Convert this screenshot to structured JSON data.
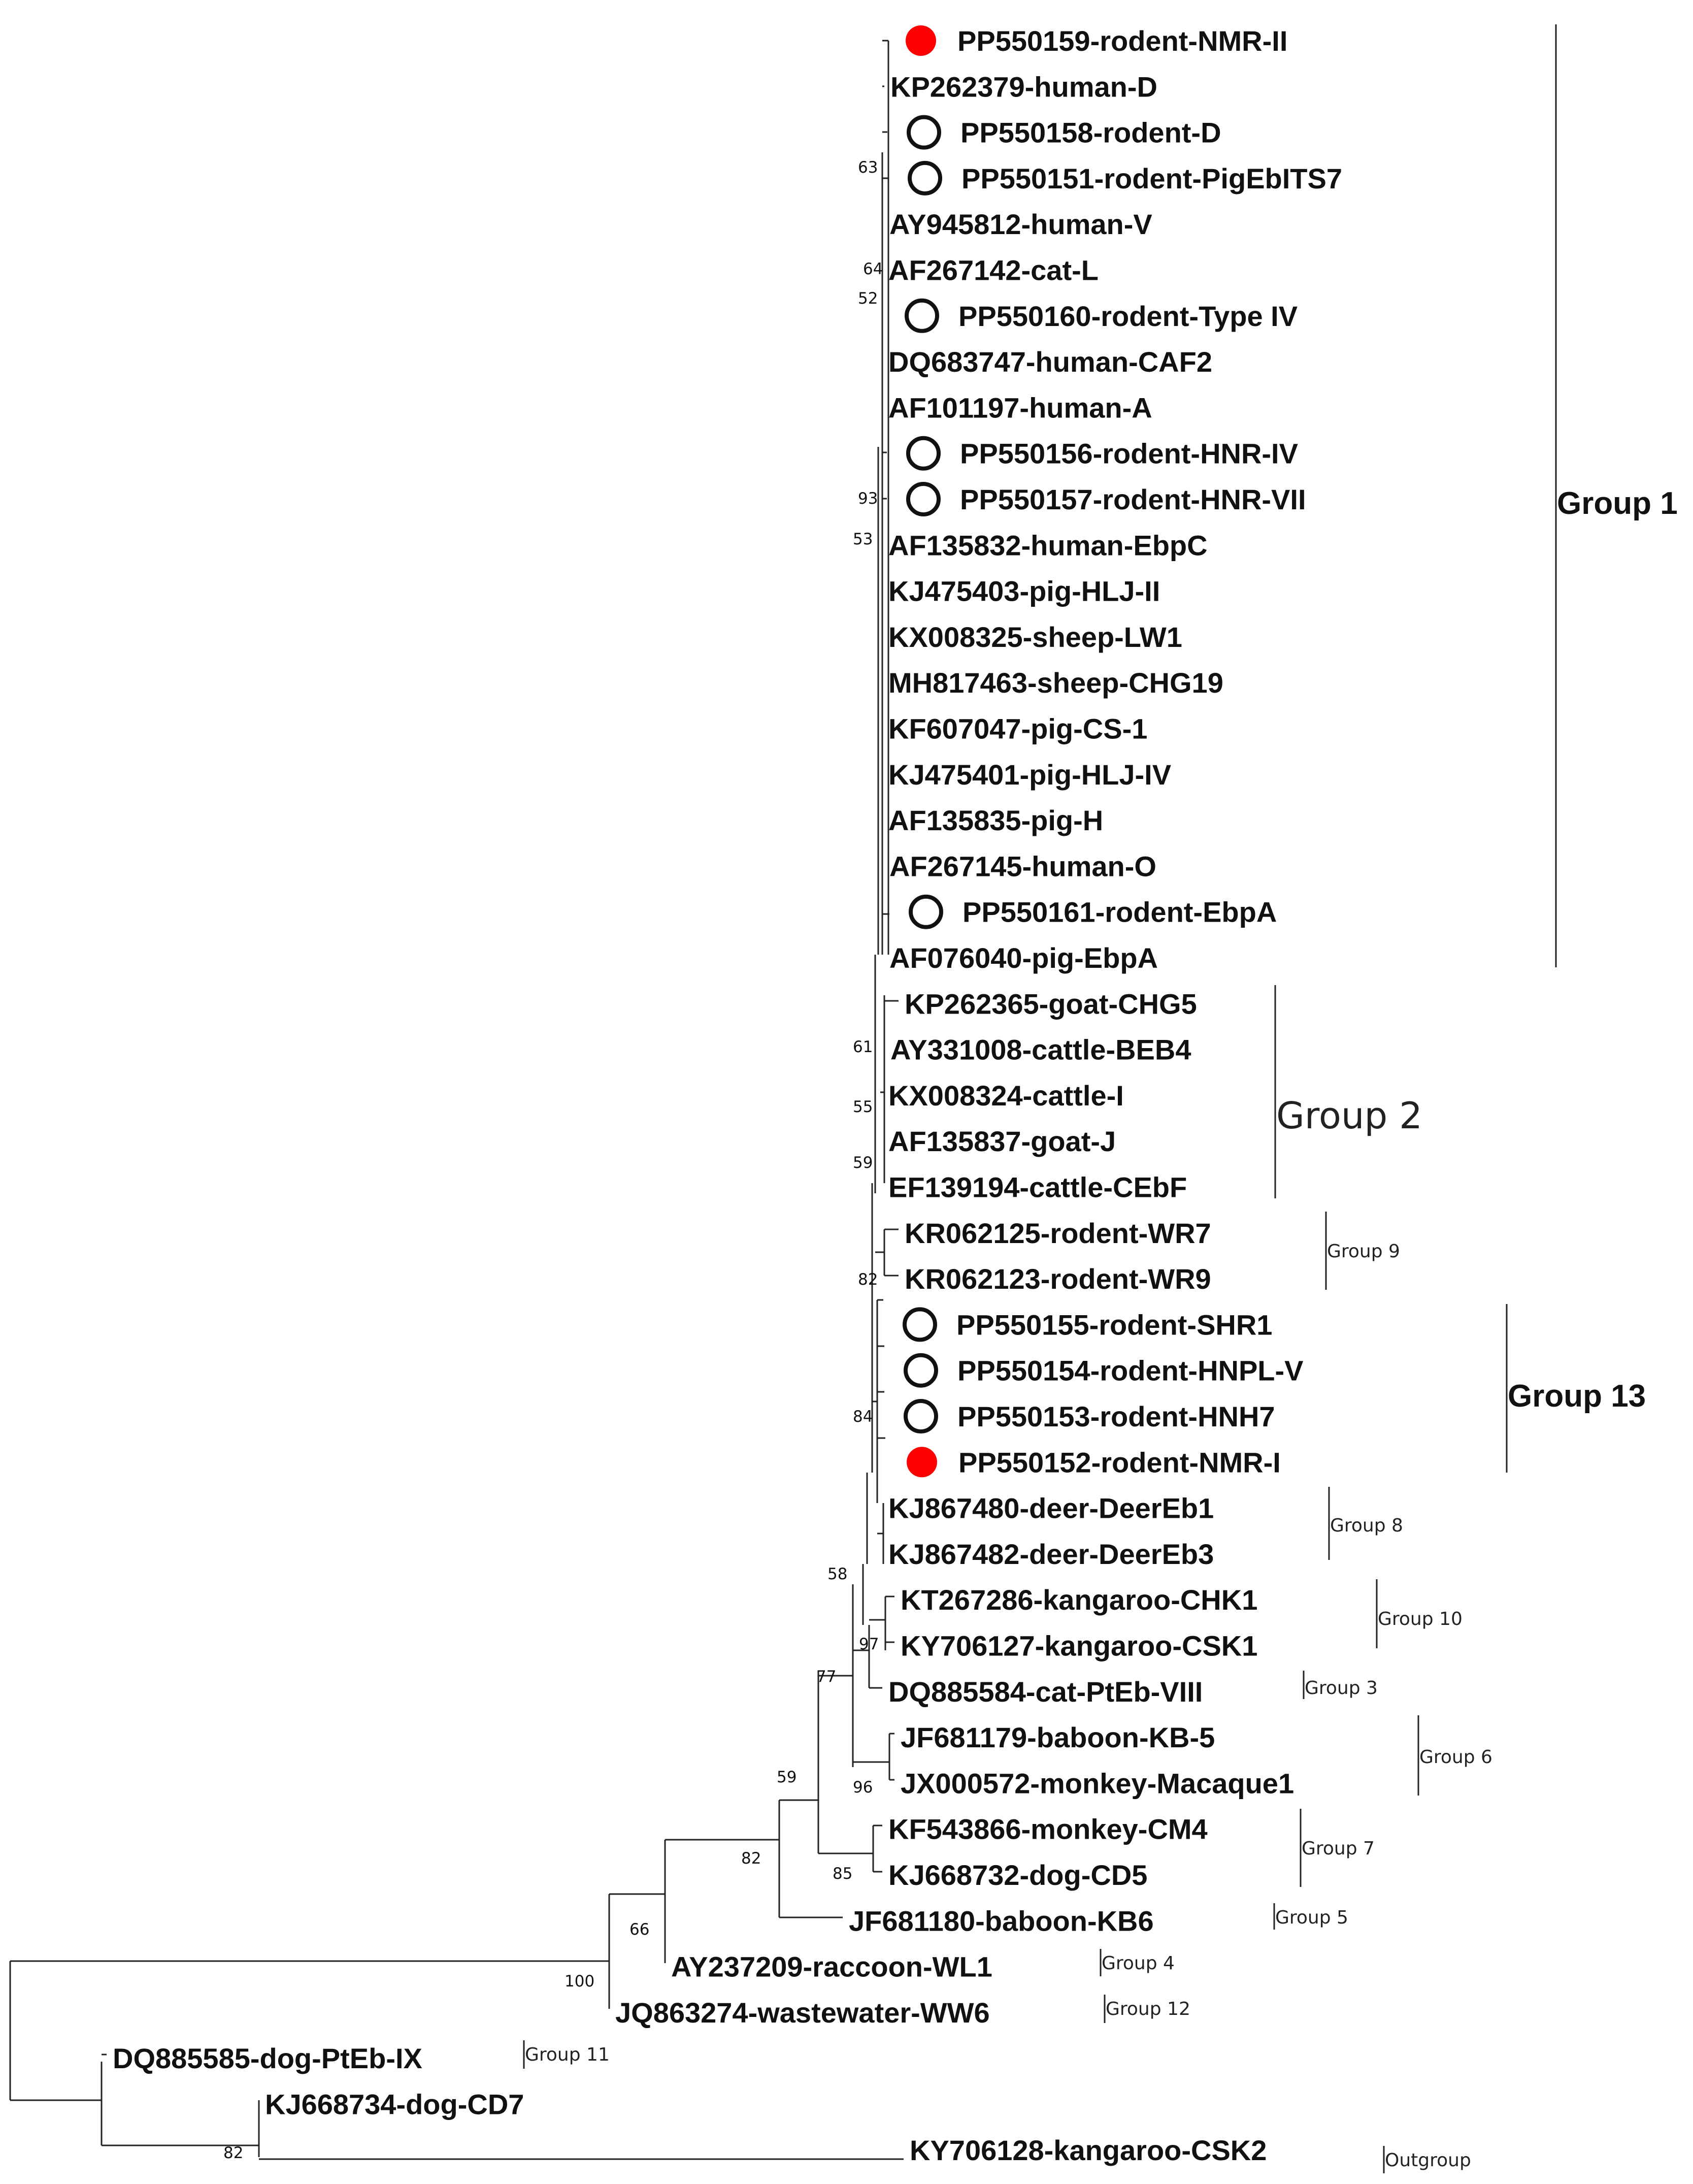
{
  "leaves": [
    {
      "id": "t01",
      "label": "PP550159-rodent-NMR-II",
      "marker": "filled",
      "color": "#ff0000"
    },
    {
      "id": "t02",
      "label": "KP262379-human-D",
      "marker": "none"
    },
    {
      "id": "t03",
      "label": "PP550158-rodent-D",
      "marker": "open"
    },
    {
      "id": "t04",
      "label": "PP550151-rodent-PigEbITS7",
      "marker": "open"
    },
    {
      "id": "t05",
      "label": "AY945812-human-V",
      "marker": "none"
    },
    {
      "id": "t06",
      "label": "AF267142-cat-L",
      "marker": "none"
    },
    {
      "id": "t07",
      "label": "PP550160-rodent-Type IV",
      "marker": "open"
    },
    {
      "id": "t08",
      "label": "DQ683747-human-CAF2",
      "marker": "none"
    },
    {
      "id": "t09",
      "label": "AF101197-human-A",
      "marker": "none"
    },
    {
      "id": "t10",
      "label": "PP550156-rodent-HNR-IV",
      "marker": "open"
    },
    {
      "id": "t11",
      "label": "PP550157-rodent-HNR-VII",
      "marker": "open"
    },
    {
      "id": "t12",
      "label": "AF135832-human-EbpC",
      "marker": "none"
    },
    {
      "id": "t13",
      "label": "KJ475403-pig-HLJ-II",
      "marker": "none"
    },
    {
      "id": "t14",
      "label": "KX008325-sheep-LW1",
      "marker": "none"
    },
    {
      "id": "t15",
      "label": "MH817463-sheep-CHG19",
      "marker": "none"
    },
    {
      "id": "t16",
      "label": "KF607047-pig-CS-1",
      "marker": "none"
    },
    {
      "id": "t17",
      "label": "KJ475401-pig-HLJ-IV",
      "marker": "none"
    },
    {
      "id": "t18",
      "label": "AF135835-pig-H",
      "marker": "none"
    },
    {
      "id": "t19",
      "label": "AF267145-human-O",
      "marker": "none"
    },
    {
      "id": "t20",
      "label": "PP550161-rodent-EbpA",
      "marker": "open"
    },
    {
      "id": "t21",
      "label": "AF076040-pig-EbpA",
      "marker": "none"
    },
    {
      "id": "t22",
      "label": "KP262365-goat-CHG5",
      "marker": "none"
    },
    {
      "id": "t23",
      "label": "AY331008-cattle-BEB4",
      "marker": "none"
    },
    {
      "id": "t24",
      "label": "KX008324-cattle-I",
      "marker": "none"
    },
    {
      "id": "t25",
      "label": "AF135837-goat-J",
      "marker": "none"
    },
    {
      "id": "t26",
      "label": "EF139194-cattle-CEbF",
      "marker": "none"
    },
    {
      "id": "t27",
      "label": "KR062125-rodent-WR7",
      "marker": "none"
    },
    {
      "id": "t28",
      "label": "KR062123-rodent-WR9",
      "marker": "none"
    },
    {
      "id": "t29",
      "label": "PP550155-rodent-SHR1",
      "marker": "open"
    },
    {
      "id": "t30",
      "label": "PP550154-rodent-HNPL-V",
      "marker": "open"
    },
    {
      "id": "t31",
      "label": "PP550153-rodent-HNH7",
      "marker": "open"
    },
    {
      "id": "t32",
      "label": "PP550152-rodent-NMR-I",
      "marker": "filled",
      "color": "#ff0000"
    },
    {
      "id": "t33",
      "label": "KJ867480-deer-DeerEb1",
      "marker": "none"
    },
    {
      "id": "t34",
      "label": "KJ867482-deer-DeerEb3",
      "marker": "none"
    },
    {
      "id": "t35",
      "label": "KT267286-kangaroo-CHK1",
      "marker": "none"
    },
    {
      "id": "t36",
      "label": "KY706127-kangaroo-CSK1",
      "marker": "none"
    },
    {
      "id": "t37",
      "label": "DQ885584-cat-PtEb-VIII",
      "marker": "none"
    },
    {
      "id": "t38",
      "label": "JF681179-baboon-KB-5",
      "marker": "none"
    },
    {
      "id": "t39",
      "label": "JX000572-monkey-Macaque1",
      "marker": "none"
    },
    {
      "id": "t40",
      "label": "KF543866-monkey-CM4",
      "marker": "none"
    },
    {
      "id": "t41",
      "label": "KJ668732-dog-CD5",
      "marker": "none"
    },
    {
      "id": "t42",
      "label": "JF681180-baboon-KB6",
      "marker": "none"
    },
    {
      "id": "t43",
      "label": "AY237209-raccoon-WL1",
      "marker": "none"
    },
    {
      "id": "t44",
      "label": "JQ863274-wastewater-WW6",
      "marker": "none"
    },
    {
      "id": "t45",
      "label": "DQ885585-dog-PtEb-IX",
      "marker": "none"
    },
    {
      "id": "t46",
      "label": "KJ668734-dog-CD7",
      "marker": "none"
    },
    {
      "id": "t47",
      "label": "KY706128-kangaroo-CSK2",
      "marker": "none"
    }
  ],
  "bootstrap": [
    "63",
    "64",
    "52",
    "93",
    "53",
    "61",
    "55",
    "59",
    "82",
    "84",
    "58",
    "97",
    "77",
    "59",
    "96",
    "82",
    "85",
    "66",
    "100",
    "82"
  ],
  "groups": [
    {
      "id": "g1",
      "label": "Group 1",
      "style": "big"
    },
    {
      "id": "g2",
      "label": "Group 2",
      "style": "g2"
    },
    {
      "id": "g9",
      "label": "Group 9",
      "style": "small"
    },
    {
      "id": "g13",
      "label": "Group 13",
      "style": "big"
    },
    {
      "id": "g8",
      "label": "Group 8",
      "style": "small"
    },
    {
      "id": "g10",
      "label": "Group 10",
      "style": "small"
    },
    {
      "id": "g3",
      "label": "Group 3",
      "style": "small"
    },
    {
      "id": "g6",
      "label": "Group 6",
      "style": "small"
    },
    {
      "id": "g7",
      "label": "Group 7",
      "style": "small"
    },
    {
      "id": "g5",
      "label": "Group 5",
      "style": "small"
    },
    {
      "id": "g4",
      "label": "Group 4",
      "style": "small"
    },
    {
      "id": "g12",
      "label": "Group 12",
      "style": "small"
    },
    {
      "id": "g11",
      "label": "Group 11",
      "style": "small"
    },
    {
      "id": "gout",
      "label": "Outgroup",
      "style": "small"
    }
  ]
}
